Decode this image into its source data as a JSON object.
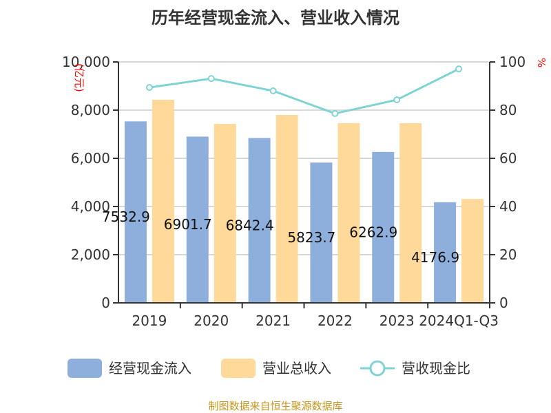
{
  "title": "历年经营现金流入、营业收入情况",
  "source": "制图数据来自恒生聚源数据库",
  "colors": {
    "cash": "#8eaedb",
    "revenue": "#ffd99a",
    "ratio": "#7fd3d3",
    "unit": "#ff0000"
  },
  "chart_data": {
    "type": "bar",
    "title": "历年经营现金流入、营业收入情况",
    "categories": [
      "2019",
      "2020",
      "2021",
      "2022",
      "2023",
      "2024Q1-Q3"
    ],
    "ylabel": "(亿元)",
    "y2label": "%",
    "ylim": [
      0,
      10000
    ],
    "y2lim": [
      0,
      100
    ],
    "yticks": [
      "0",
      "2,000",
      "4,000",
      "6,000",
      "8,000",
      "10,000"
    ],
    "y2ticks": [
      "0",
      "20",
      "40",
      "60",
      "80",
      "100"
    ],
    "grid": true,
    "legend_position": "bottom",
    "series": [
      {
        "name": "经营现金流入",
        "type": "bar",
        "axis": "left",
        "values": [
          7532.9,
          6901.7,
          6842.4,
          5823.7,
          6262.9,
          4176.9
        ],
        "labels": [
          "7532.9",
          "6901.7",
          "6842.4",
          "5823.7",
          "6262.9",
          "4176.9"
        ]
      },
      {
        "name": "营业总收入",
        "type": "bar",
        "axis": "left",
        "values": [
          8430,
          7430,
          7800,
          7460,
          7460,
          4310
        ]
      },
      {
        "name": "营收现金比",
        "type": "line",
        "axis": "right",
        "values": [
          89.4,
          93.1,
          88.0,
          78.6,
          84.3,
          97.1
        ]
      }
    ]
  }
}
